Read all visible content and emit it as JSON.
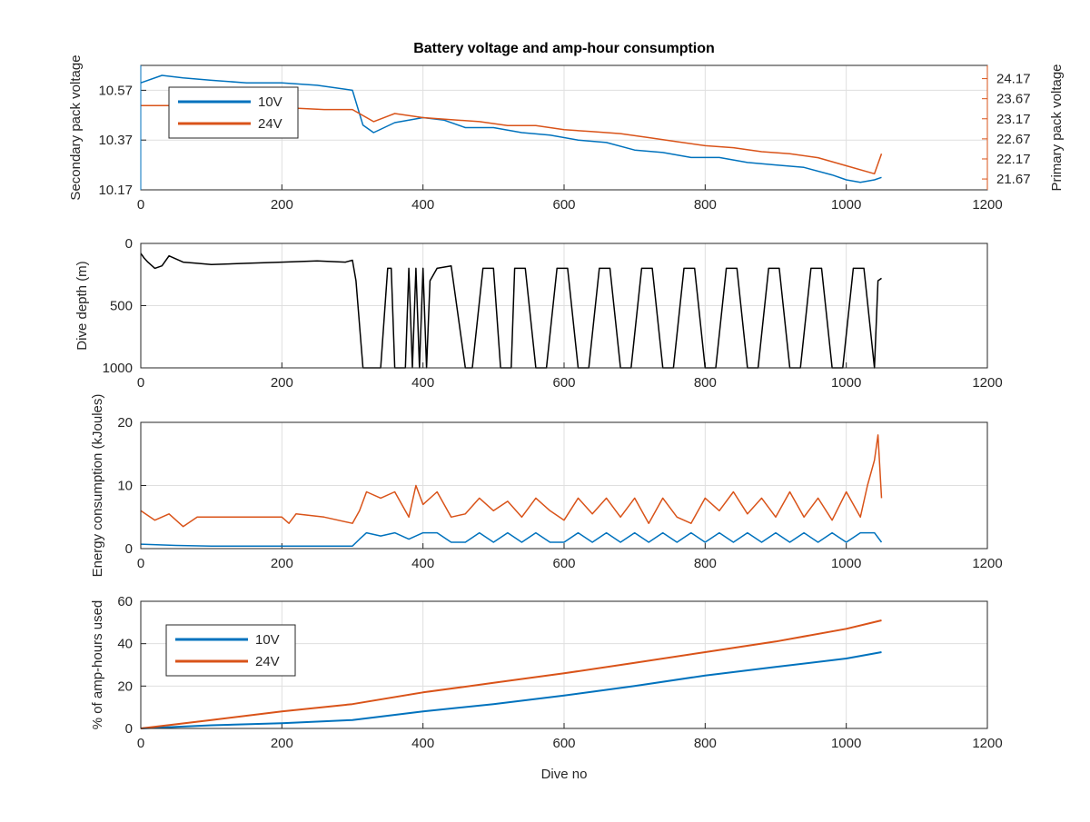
{
  "figure": {
    "title": "Battery voltage and amp-hour consumption",
    "xlabel": "Dive no",
    "colors": {
      "s10V": "#0072bd",
      "s24V": "#d95319",
      "depth": "#000000",
      "grid": "#dfdfdf",
      "axis": "#262626"
    }
  },
  "chart_data": [
    {
      "type": "line",
      "panel": "voltage",
      "title": "Battery voltage and amp-hour consumption",
      "xlim": [
        0,
        1200
      ],
      "xticks": [
        "0",
        "200",
        "400",
        "600",
        "800",
        "1000",
        "1200"
      ],
      "ylabel": "Secondary pack voltage",
      "ylim": [
        10.17,
        10.67
      ],
      "yticks": [
        "10.17",
        "10.37",
        "10.57"
      ],
      "y2label": "Primary pack voltage",
      "y2lim": [
        21.4,
        24.5
      ],
      "y2ticks": [
        "21.67",
        "22.17",
        "22.67",
        "23.17",
        "23.67",
        "24.17"
      ],
      "grid": true,
      "legend_position": "top-left",
      "series": [
        {
          "name": "10V",
          "axis": "left",
          "x": [
            0,
            30,
            60,
            100,
            150,
            200,
            250,
            300,
            315,
            330,
            360,
            400,
            430,
            460,
            500,
            540,
            580,
            620,
            660,
            700,
            740,
            780,
            820,
            860,
            900,
            940,
            980,
            1000,
            1020,
            1040,
            1050
          ],
          "y": [
            10.6,
            10.63,
            10.62,
            10.61,
            10.6,
            10.6,
            10.59,
            10.57,
            10.43,
            10.4,
            10.44,
            10.46,
            10.45,
            10.42,
            10.42,
            10.4,
            10.39,
            10.37,
            10.36,
            10.33,
            10.32,
            10.3,
            10.3,
            10.28,
            10.27,
            10.26,
            10.23,
            10.21,
            10.2,
            10.21,
            10.22
          ]
        },
        {
          "name": "24V",
          "axis": "right",
          "x": [
            0,
            60,
            120,
            200,
            260,
            300,
            330,
            360,
            400,
            440,
            480,
            520,
            560,
            600,
            640,
            680,
            720,
            760,
            800,
            840,
            880,
            920,
            960,
            1000,
            1040,
            1050
          ],
          "y": [
            23.5,
            23.5,
            23.5,
            23.45,
            23.4,
            23.4,
            23.1,
            23.3,
            23.2,
            23.15,
            23.1,
            23.0,
            23.0,
            22.9,
            22.85,
            22.8,
            22.7,
            22.6,
            22.5,
            22.45,
            22.35,
            22.3,
            22.2,
            22.0,
            21.8,
            22.3
          ]
        }
      ]
    },
    {
      "type": "line",
      "panel": "depth",
      "xlim": [
        0,
        1200
      ],
      "xticks": [
        "0",
        "200",
        "400",
        "600",
        "800",
        "1000",
        "1200"
      ],
      "ylabel": "Dive depth (m)",
      "ylim": [
        0,
        1000
      ],
      "y_reversed": true,
      "yticks": [
        "0",
        "500",
        "1000"
      ],
      "grid": true,
      "series": [
        {
          "name": "",
          "x": [
            0,
            5,
            10,
            20,
            30,
            40,
            60,
            80,
            100,
            150,
            200,
            250,
            290,
            300,
            305,
            315,
            320,
            340,
            350,
            355,
            360,
            375,
            380,
            385,
            390,
            395,
            400,
            405,
            410,
            420,
            440,
            460,
            470,
            485,
            500,
            510,
            525,
            530,
            545,
            560,
            575,
            590,
            605,
            620,
            635,
            650,
            665,
            680,
            695,
            710,
            725,
            740,
            755,
            770,
            785,
            800,
            815,
            830,
            845,
            860,
            875,
            890,
            905,
            920,
            935,
            950,
            965,
            980,
            995,
            1010,
            1025,
            1040,
            1045,
            1050
          ],
          "y": [
            80,
            120,
            150,
            200,
            180,
            100,
            150,
            160,
            170,
            160,
            150,
            140,
            150,
            135,
            300,
            1000,
            1000,
            1000,
            200,
            200,
            1000,
            1000,
            200,
            1000,
            200,
            1000,
            200,
            1000,
            300,
            200,
            180,
            1000,
            1000,
            200,
            200,
            1000,
            1000,
            200,
            200,
            1000,
            1000,
            200,
            200,
            1000,
            1000,
            200,
            200,
            1000,
            1000,
            200,
            200,
            1000,
            1000,
            200,
            200,
            1000,
            1000,
            200,
            200,
            1000,
            1000,
            200,
            200,
            1000,
            1000,
            200,
            200,
            1000,
            1000,
            200,
            200,
            1000,
            300,
            280
          ]
        }
      ]
    },
    {
      "type": "line",
      "panel": "energy",
      "xlim": [
        0,
        1200
      ],
      "xticks": [
        "0",
        "200",
        "400",
        "600",
        "800",
        "1000",
        "1200"
      ],
      "ylabel": "Energy consumption (kJoules)",
      "ylim": [
        0,
        20
      ],
      "yticks": [
        "0",
        "10",
        "20"
      ],
      "grid": true,
      "series": [
        {
          "name": "24V",
          "x": [
            0,
            20,
            40,
            60,
            80,
            120,
            160,
            200,
            210,
            220,
            260,
            300,
            310,
            320,
            340,
            360,
            380,
            390,
            400,
            420,
            440,
            460,
            480,
            500,
            520,
            540,
            560,
            580,
            600,
            620,
            640,
            660,
            680,
            700,
            720,
            740,
            760,
            780,
            800,
            820,
            840,
            860,
            880,
            900,
            920,
            940,
            960,
            980,
            1000,
            1020,
            1030,
            1040,
            1045,
            1050
          ],
          "y": [
            6,
            4.5,
            5.5,
            3.5,
            5,
            5,
            5,
            5,
            4,
            5.5,
            5,
            4,
            6,
            9,
            8,
            9,
            5,
            10,
            7,
            9,
            5,
            5.5,
            8,
            6,
            7.5,
            5,
            8,
            6,
            4.5,
            8,
            5.5,
            8,
            5,
            8,
            4,
            8,
            5,
            4,
            8,
            6,
            9,
            5.5,
            8,
            5,
            9,
            5,
            8,
            4.5,
            9,
            5,
            10,
            14,
            18,
            8
          ]
        },
        {
          "name": "10V",
          "x": [
            0,
            50,
            100,
            200,
            300,
            310,
            320,
            340,
            360,
            380,
            400,
            420,
            440,
            460,
            480,
            500,
            520,
            540,
            560,
            580,
            600,
            620,
            640,
            660,
            680,
            700,
            720,
            740,
            760,
            780,
            800,
            820,
            840,
            860,
            880,
            900,
            920,
            940,
            960,
            980,
            1000,
            1020,
            1040,
            1050
          ],
          "y": [
            0.7,
            0.5,
            0.4,
            0.4,
            0.4,
            1.5,
            2.5,
            2,
            2.5,
            1.5,
            2.5,
            2.5,
            1,
            1,
            2.5,
            1,
            2.5,
            1,
            2.5,
            1,
            1,
            2.5,
            1,
            2.5,
            1,
            2.5,
            1,
            2.5,
            1,
            2.5,
            1,
            2.5,
            1,
            2.5,
            1,
            2.5,
            1,
            2.5,
            1,
            2.5,
            1,
            2.5,
            2.5,
            1
          ]
        }
      ]
    },
    {
      "type": "line",
      "panel": "amp-hours",
      "xlim": [
        0,
        1200
      ],
      "xticks": [
        "0",
        "200",
        "400",
        "600",
        "800",
        "1000",
        "1200"
      ],
      "xlabel": "Dive no",
      "ylabel": "% of amp-hours used",
      "ylim": [
        0,
        60
      ],
      "yticks": [
        "0",
        "20",
        "40",
        "60"
      ],
      "grid": true,
      "legend_position": "top-left",
      "series": [
        {
          "name": "10V",
          "x": [
            0,
            100,
            200,
            300,
            400,
            500,
            600,
            700,
            800,
            900,
            1000,
            1050
          ],
          "y": [
            0,
            1.5,
            2.5,
            4,
            8,
            11.5,
            15.5,
            20,
            25,
            29,
            33,
            36
          ]
        },
        {
          "name": "24V",
          "x": [
            0,
            100,
            200,
            300,
            400,
            500,
            600,
            700,
            800,
            900,
            1000,
            1050
          ],
          "y": [
            0,
            4,
            8,
            11.5,
            17,
            21.5,
            26,
            31,
            36,
            41,
            47,
            51
          ]
        }
      ]
    }
  ]
}
